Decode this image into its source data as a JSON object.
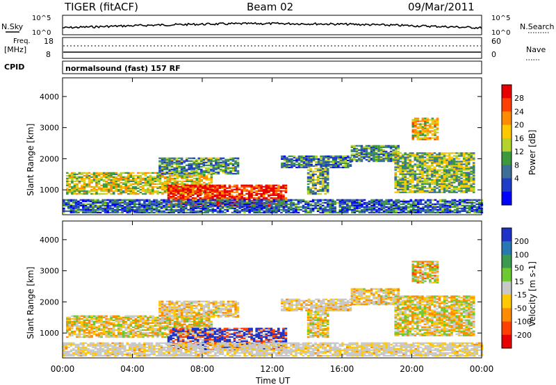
{
  "header": {
    "radar": "TIGER (fitACF)",
    "beam": "Beam 02",
    "date": "09/Mar/2011"
  },
  "top_panels": {
    "nsky_label": "N.Sky",
    "nsky_ticks": [
      "10^5",
      "10^0"
    ],
    "nsearch_label": "N.Search",
    "nsearch_ticks": [
      "10^5",
      "10^0"
    ],
    "freq_label_line1": "Freq.",
    "freq_label_line2": "[MHz]",
    "freq_ticks": [
      "18",
      "8"
    ],
    "nave_label": "Nave",
    "nave_ticks": [
      "60",
      "0"
    ],
    "cpid_label": "CPID",
    "cpid_text": "normalsound (fast) 157 RF"
  },
  "chart_data": [
    {
      "type": "heatmap",
      "name": "power-panel",
      "ylabel": "Slant Range [km]",
      "xlabel": "",
      "yticks": [
        1000,
        2000,
        3000,
        4000
      ],
      "ylim": [
        200,
        4600
      ],
      "xticks": [
        "00:00",
        "04:00",
        "08:00",
        "12:00",
        "16:00",
        "20:00",
        "00:00"
      ],
      "xlim_hours": [
        0,
        24
      ],
      "colorbar": {
        "label": "Power [dB]",
        "ticks": [
          "28",
          "24",
          "20",
          "16",
          "12",
          "8",
          "4"
        ],
        "colors": [
          "#e60000",
          "#ff4000",
          "#ff8c00",
          "#ffc800",
          "#b4d22a",
          "#3c9a3c",
          "#3c6e96",
          "#1e3cc8",
          "#0000ff"
        ]
      }
    },
    {
      "type": "heatmap",
      "name": "velocity-panel",
      "ylabel": "Slant Range [km]",
      "xlabel": "Time UT",
      "yticks": [
        1000,
        2000,
        3000,
        4000
      ],
      "ylim": [
        200,
        4600
      ],
      "xticks": [
        "00:00",
        "04:00",
        "08:00",
        "12:00",
        "16:00",
        "20:00",
        "00:00"
      ],
      "xlim_hours": [
        0,
        24
      ],
      "colorbar": {
        "label": "Velocity [m s-1]",
        "ticks": [
          "200",
          "100",
          "50",
          "15",
          "-15",
          "-50",
          "-100",
          "-200"
        ],
        "colors": [
          "#1e32c8",
          "#2878b4",
          "#3c9a50",
          "#6ec832",
          "#c8c8c8",
          "#ffc800",
          "#ff8c00",
          "#ff4000",
          "#e60000"
        ]
      }
    }
  ]
}
